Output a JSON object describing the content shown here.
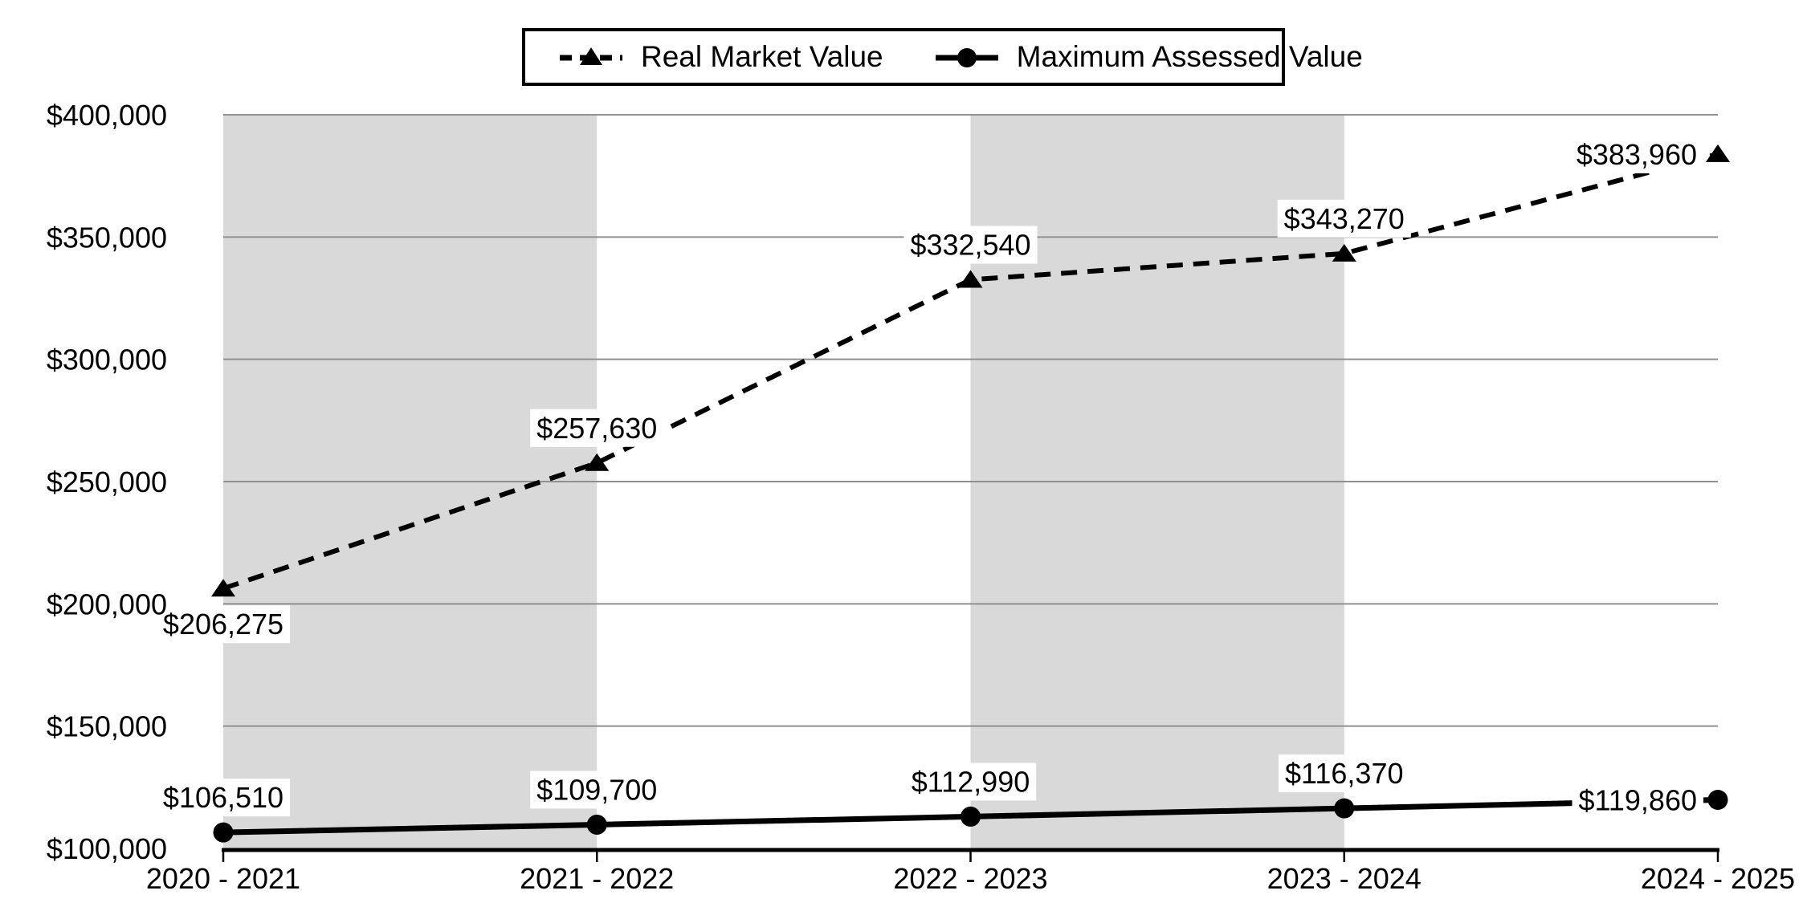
{
  "chart_data": {
    "type": "line",
    "title": "",
    "categories": [
      "2020 - 2021",
      "2021 - 2022",
      "2022 - 2023",
      "2023 - 2024",
      "2024 - 2025"
    ],
    "series": [
      {
        "name": "Real Market Value",
        "line_style": "dashed",
        "marker": "triangle",
        "color": "#000000",
        "values": [
          206275,
          257630,
          332540,
          343270,
          383960
        ],
        "data_labels": [
          "$206,275",
          "$257,630",
          "$332,540",
          "$343,270",
          "$383,960"
        ],
        "label_positions": [
          "below",
          "above",
          "above",
          "above",
          "left"
        ]
      },
      {
        "name": "Maximum Assessed Value",
        "line_style": "solid",
        "marker": "circle",
        "color": "#000000",
        "values": [
          106510,
          109700,
          112990,
          116370,
          119860
        ],
        "data_labels": [
          "$106,510",
          "$109,700",
          "$112,990",
          "$116,370",
          "$119,860"
        ],
        "label_positions": [
          "above",
          "above",
          "above",
          "above",
          "left"
        ]
      }
    ],
    "y_axis": {
      "min": 100000,
      "max": 400000,
      "step": 50000,
      "tick_labels": [
        "$100,000",
        "$150,000",
        "$200,000",
        "$250,000",
        "$300,000",
        "$350,000",
        "$400,000"
      ]
    },
    "x_axis": {
      "tick_labels": [
        "2020 - 2021",
        "2021 - 2022",
        "2022 - 2023",
        "2023 - 2024",
        "2024 - 2025"
      ]
    },
    "legend_position": "top",
    "grid": true,
    "plot_bands": {
      "color": "#d9d9d9",
      "intervals": [
        [
          0,
          1
        ],
        [
          2,
          3
        ]
      ]
    },
    "colors": {
      "series": "#000000",
      "gridline": "#909090",
      "axis": "#000000",
      "background": "#ffffff",
      "label_background": "#ffffff",
      "text": "#000000"
    }
  },
  "legend": {
    "items": [
      {
        "label": "Real Market Value"
      },
      {
        "label": "Maximum Assessed Value"
      }
    ]
  }
}
